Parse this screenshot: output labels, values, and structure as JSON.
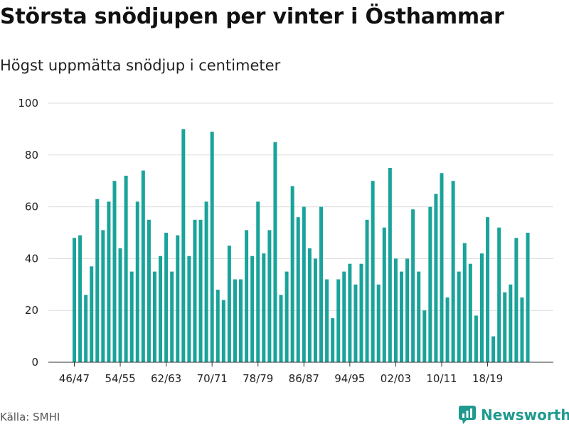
{
  "title": "Största snödjupen per vinter i Östhammar",
  "subtitle": "Högst uppmätta snödjup i centimeter",
  "source": "Källa: SMHI",
  "brand": {
    "name": "Newsworthy",
    "color": "#1f9a8e"
  },
  "chart_data": {
    "type": "bar",
    "bar_color": "#1aa39a",
    "first_winter": "46/47",
    "ylim": [
      0,
      100
    ],
    "yticks": [
      0,
      20,
      40,
      60,
      80,
      100
    ],
    "xtick_labels": [
      "46/47",
      "54/55",
      "62/63",
      "70/71",
      "78/79",
      "86/87",
      "94/95",
      "02/03",
      "10/11",
      "18/19"
    ],
    "xtick_every": 8,
    "values": [
      48,
      49,
      26,
      37,
      63,
      51,
      62,
      70,
      44,
      72,
      35,
      62,
      74,
      55,
      35,
      41,
      50,
      35,
      49,
      90,
      41,
      55,
      55,
      62,
      89,
      28,
      24,
      45,
      32,
      32,
      51,
      41,
      62,
      42,
      51,
      85,
      26,
      35,
      68,
      56,
      60,
      44,
      40,
      60,
      32,
      17,
      32,
      35,
      38,
      30,
      38,
      55,
      70,
      30,
      52,
      75,
      40,
      35,
      40,
      59,
      35,
      20,
      60,
      65,
      73,
      25,
      70,
      35,
      46,
      38,
      18,
      42,
      56,
      10,
      52,
      27,
      30,
      48,
      25,
      50
    ]
  }
}
